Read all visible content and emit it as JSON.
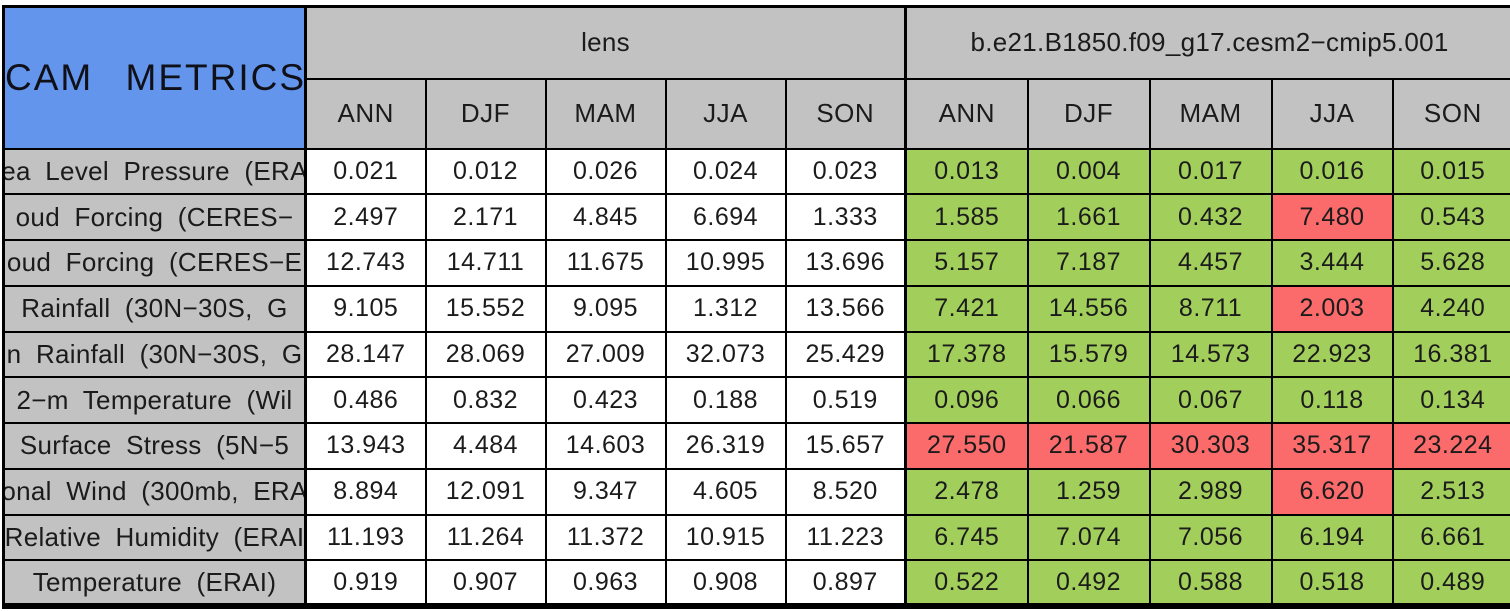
{
  "colors": {
    "title_bg_blue": "#6495ED",
    "header_gray": "#C2C2C2",
    "better_green": "#A2CE5B",
    "worse_red": "#FB6B6B",
    "grid_border": "#000000",
    "lens_cell_white": "#FFFFFF"
  },
  "chart_data": {
    "type": "table",
    "title": "CAM METRICS",
    "groups": [
      {
        "name": "lens",
        "seasons": [
          "ANN",
          "DJF",
          "MAM",
          "JJA",
          "SON"
        ]
      },
      {
        "name": "b.e21.B1850.f09_g17.cesm2−cmip5.001",
        "seasons": [
          "ANN",
          "DJF",
          "MAM",
          "JJA",
          "SON"
        ]
      }
    ],
    "rows": [
      {
        "label": "ea Level Pressure (ERA",
        "lens": [
          "0.021",
          "0.012",
          "0.026",
          "0.024",
          "0.023"
        ],
        "model2": [
          "0.013",
          "0.004",
          "0.017",
          "0.016",
          "0.015"
        ],
        "model2_cell_colors": [
          "green",
          "green",
          "green",
          "green",
          "green"
        ]
      },
      {
        "label": "oud Forcing (CERES−",
        "lens": [
          "2.497",
          "2.171",
          "4.845",
          "6.694",
          "1.333"
        ],
        "model2": [
          "1.585",
          "1.661",
          "0.432",
          "7.480",
          "0.543"
        ],
        "model2_cell_colors": [
          "green",
          "green",
          "green",
          "red",
          "green"
        ]
      },
      {
        "label": "oud Forcing (CERES−E",
        "lens": [
          "12.743",
          "14.711",
          "11.675",
          "10.995",
          "13.696"
        ],
        "model2": [
          "5.157",
          "7.187",
          "4.457",
          "3.444",
          "5.628"
        ],
        "model2_cell_colors": [
          "green",
          "green",
          "green",
          "green",
          "green"
        ]
      },
      {
        "label": "Rainfall (30N−30S, G",
        "lens": [
          "9.105",
          "15.552",
          "9.095",
          "1.312",
          "13.566"
        ],
        "model2": [
          "7.421",
          "14.556",
          "8.711",
          "2.003",
          "4.240"
        ],
        "model2_cell_colors": [
          "green",
          "green",
          "green",
          "red",
          "green"
        ]
      },
      {
        "label": "n Rainfall (30N−30S, G",
        "lens": [
          "28.147",
          "28.069",
          "27.009",
          "32.073",
          "25.429"
        ],
        "model2": [
          "17.378",
          "15.579",
          "14.573",
          "22.923",
          "16.381"
        ],
        "model2_cell_colors": [
          "green",
          "green",
          "green",
          "green",
          "green"
        ]
      },
      {
        "label": "2−m Temperature (Wil",
        "lens": [
          "0.486",
          "0.832",
          "0.423",
          "0.188",
          "0.519"
        ],
        "model2": [
          "0.096",
          "0.066",
          "0.067",
          "0.118",
          "0.134"
        ],
        "model2_cell_colors": [
          "green",
          "green",
          "green",
          "green",
          "green"
        ]
      },
      {
        "label": "Surface Stress (5N−5",
        "lens": [
          "13.943",
          "4.484",
          "14.603",
          "26.319",
          "15.657"
        ],
        "model2": [
          "27.550",
          "21.587",
          "30.303",
          "35.317",
          "23.224"
        ],
        "model2_cell_colors": [
          "red",
          "red",
          "red",
          "red",
          "red"
        ]
      },
      {
        "label": "onal Wind (300mb, ERA",
        "lens": [
          "8.894",
          "12.091",
          "9.347",
          "4.605",
          "8.520"
        ],
        "model2": [
          "2.478",
          "1.259",
          "2.989",
          "6.620",
          "2.513"
        ],
        "model2_cell_colors": [
          "green",
          "green",
          "green",
          "red",
          "green"
        ]
      },
      {
        "label": "Relative Humidity (ERAI",
        "lens": [
          "11.193",
          "11.264",
          "11.372",
          "10.915",
          "11.223"
        ],
        "model2": [
          "6.745",
          "7.074",
          "7.056",
          "6.194",
          "6.661"
        ],
        "model2_cell_colors": [
          "green",
          "green",
          "green",
          "green",
          "green"
        ]
      },
      {
        "label": "Temperature (ERAI)",
        "lens": [
          "0.919",
          "0.907",
          "0.963",
          "0.908",
          "0.897"
        ],
        "model2": [
          "0.522",
          "0.492",
          "0.588",
          "0.518",
          "0.489"
        ],
        "model2_cell_colors": [
          "green",
          "green",
          "green",
          "green",
          "green"
        ]
      }
    ]
  }
}
